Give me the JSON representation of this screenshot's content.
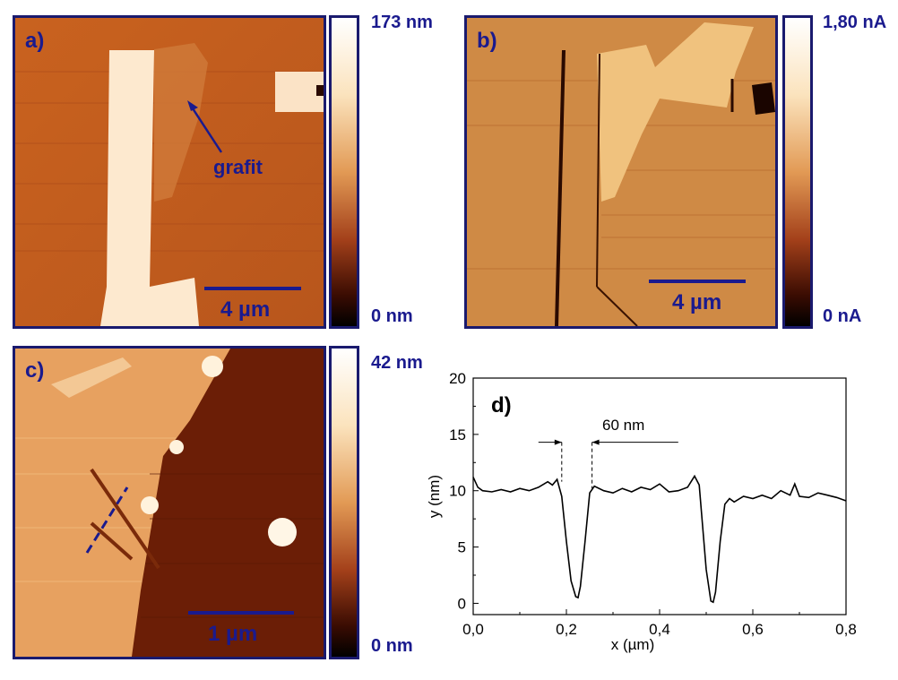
{
  "panels": {
    "a": {
      "label": "a)",
      "cbar_max": "173 nm",
      "cbar_min": "0 nm",
      "scale": "4 µm",
      "annotation": "grafit"
    },
    "b": {
      "label": "b)",
      "cbar_max": "1,80 nA",
      "cbar_min": "0 nA",
      "scale": "4 µm"
    },
    "c": {
      "label": "c)",
      "cbar_max": "42 nm",
      "cbar_min": "0 nm",
      "scale": "1 µm"
    },
    "d": {
      "label": "d)",
      "annotation": "60 nm"
    }
  },
  "colors": {
    "afm_dark": "#1a0500",
    "afm_mid": "#b8501a",
    "afm_light": "#fff6e8",
    "frame": "#1a1a6e",
    "text": "#1a1a8e"
  },
  "chart_data": {
    "type": "line",
    "xlabel": "x (µm)",
    "ylabel": "y (nm)",
    "xlim": [
      0.0,
      0.8
    ],
    "ylim": [
      -1,
      20
    ],
    "xticks": [
      "0,0",
      "0,2",
      "0,4",
      "0,6",
      "0,8"
    ],
    "yticks": [
      "0",
      "5",
      "10",
      "15",
      "20"
    ],
    "grid": false,
    "series": [
      {
        "x": [
          0.0,
          0.01,
          0.02,
          0.04,
          0.06,
          0.08,
          0.1,
          0.12,
          0.14,
          0.16,
          0.17,
          0.18,
          0.19,
          0.2,
          0.21,
          0.22,
          0.225,
          0.23,
          0.24,
          0.25,
          0.26,
          0.28,
          0.3,
          0.32,
          0.34,
          0.36,
          0.38,
          0.4,
          0.42,
          0.44,
          0.46,
          0.475,
          0.485,
          0.49,
          0.5,
          0.51,
          0.515,
          0.52,
          0.53,
          0.54,
          0.55,
          0.56,
          0.58,
          0.6,
          0.62,
          0.64,
          0.66,
          0.68,
          0.69,
          0.7,
          0.72,
          0.74,
          0.76,
          0.78,
          0.8
        ],
        "y": [
          11.2,
          10.3,
          10.0,
          9.9,
          10.1,
          9.9,
          10.2,
          10.0,
          10.3,
          10.8,
          10.5,
          11.0,
          9.5,
          5.5,
          2.0,
          0.6,
          0.5,
          1.5,
          5.5,
          9.8,
          10.4,
          10.0,
          9.8,
          10.2,
          9.9,
          10.3,
          10.1,
          10.6,
          9.9,
          10.0,
          10.3,
          11.3,
          10.5,
          8.0,
          3.0,
          0.2,
          0.1,
          1.0,
          5.5,
          8.8,
          9.3,
          9.0,
          9.5,
          9.3,
          9.6,
          9.3,
          10.0,
          9.6,
          10.6,
          9.5,
          9.4,
          9.8,
          9.6,
          9.4,
          9.1
        ]
      }
    ],
    "arrow_span_x": [
      0.19,
      0.255
    ]
  }
}
